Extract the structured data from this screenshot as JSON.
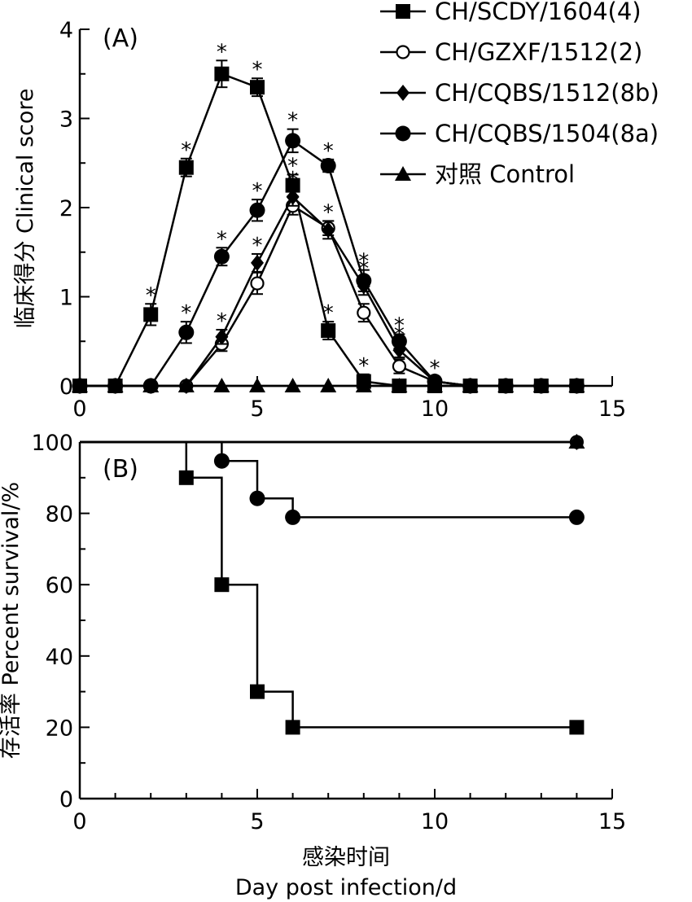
{
  "chart_data": [
    {
      "type": "line",
      "panel_label": "(A)",
      "ylabel": "临床得分 Clinical score",
      "xlim": [
        0,
        15
      ],
      "ylim": [
        0,
        4
      ],
      "x_ticks": [
        "0",
        "5",
        "10",
        "15"
      ],
      "y_ticks": [
        "0",
        "1",
        "2",
        "3",
        "4"
      ],
      "grid": false,
      "legend_position": "top-right",
      "significance_marker": "*",
      "series": [
        {
          "name": "CH/SCDY/1604(4)",
          "marker": "square-filled",
          "x": [
            0,
            1,
            2,
            3,
            4,
            5,
            6,
            7,
            8,
            9,
            10,
            11,
            12,
            13,
            14
          ],
          "y": [
            0,
            0,
            0.8,
            2.45,
            3.5,
            3.35,
            2.25,
            0.62,
            0.05,
            0,
            0,
            0,
            0,
            0,
            0
          ],
          "err": [
            0,
            0,
            0.12,
            0.1,
            0.15,
            0.1,
            0.12,
            0.1,
            0.08,
            0,
            0,
            0,
            0,
            0,
            0
          ],
          "sig": [
            false,
            false,
            true,
            true,
            true,
            true,
            true,
            true,
            true,
            false,
            false,
            false,
            false,
            false,
            false
          ]
        },
        {
          "name": "CH/GZXF/1512(2)",
          "marker": "circle-open",
          "x": [
            0,
            1,
            2,
            3,
            4,
            5,
            6,
            7,
            8,
            9,
            10,
            11,
            12,
            13,
            14
          ],
          "y": [
            0,
            0,
            0,
            0,
            0.47,
            1.15,
            2.02,
            1.77,
            0.82,
            0.22,
            0.05,
            0,
            0,
            0,
            0
          ],
          "err": [
            0,
            0,
            0,
            0,
            0.08,
            0.12,
            0.1,
            0.08,
            0.1,
            0.08,
            0.05,
            0,
            0,
            0,
            0
          ],
          "sig": [
            false,
            false,
            false,
            false,
            false,
            false,
            false,
            false,
            false,
            false,
            false,
            false,
            false,
            false,
            false
          ]
        },
        {
          "name": "CH/CQBS/1512(8b)",
          "marker": "diamond-filled",
          "x": [
            0,
            1,
            2,
            3,
            4,
            5,
            6,
            7,
            8,
            9,
            10,
            11,
            12,
            13,
            14
          ],
          "y": [
            0,
            0,
            0,
            0,
            0.55,
            1.38,
            2.12,
            1.75,
            1.12,
            0.4,
            0.05,
            0,
            0,
            0,
            0
          ],
          "err": [
            0,
            0,
            0,
            0,
            0.08,
            0.1,
            0.1,
            0.1,
            0.1,
            0.08,
            0.05,
            0,
            0,
            0,
            0
          ],
          "sig": [
            false,
            false,
            false,
            false,
            true,
            true,
            true,
            true,
            true,
            true,
            true,
            false,
            false,
            false,
            false
          ]
        },
        {
          "name": "CH/CQBS/1504(8a)",
          "marker": "circle-filled",
          "x": [
            0,
            1,
            2,
            3,
            4,
            5,
            6,
            7,
            8,
            9,
            10,
            11,
            12,
            13,
            14
          ],
          "y": [
            0,
            0,
            0,
            0.6,
            1.45,
            1.97,
            2.75,
            2.47,
            1.18,
            0.5,
            0.05,
            0,
            0,
            0,
            0
          ],
          "err": [
            0,
            0,
            0,
            0.12,
            0.1,
            0.12,
            0.13,
            0.07,
            0.12,
            0.08,
            0.05,
            0,
            0,
            0,
            0
          ],
          "sig": [
            false,
            false,
            false,
            true,
            true,
            true,
            true,
            true,
            true,
            true,
            false,
            false,
            false,
            false,
            false
          ]
        },
        {
          "name": "对照 Control",
          "marker": "triangle-filled",
          "x": [
            0,
            1,
            2,
            3,
            4,
            5,
            6,
            7,
            8,
            9,
            10,
            11,
            12,
            13,
            14
          ],
          "y": [
            0,
            0,
            0,
            0,
            0,
            0,
            0,
            0,
            0,
            0,
            0,
            0,
            0,
            0,
            0
          ],
          "err": [
            0,
            0,
            0,
            0,
            0,
            0,
            0,
            0,
            0,
            0,
            0,
            0,
            0,
            0,
            0
          ],
          "sig": [
            false,
            false,
            false,
            false,
            false,
            false,
            false,
            false,
            false,
            false,
            false,
            false,
            false,
            false,
            false
          ]
        }
      ]
    },
    {
      "type": "line",
      "step": true,
      "panel_label": "(B)",
      "ylabel": "存活率 Percent survival/%",
      "xlabel": "感染时间",
      "xlabel_en": "Day post infection/d",
      "xlim": [
        0,
        15
      ],
      "ylim": [
        0,
        100
      ],
      "x_ticks": [
        "0",
        "5",
        "10",
        "15"
      ],
      "y_ticks": [
        "0",
        "20",
        "40",
        "60",
        "80",
        "100"
      ],
      "grid": false,
      "series": [
        {
          "name": "CH/SCDY/1604(4)",
          "marker": "square-filled",
          "steps_x": [
            0,
            3,
            4,
            5,
            6,
            14
          ],
          "steps_y": [
            100,
            90,
            60,
            30,
            20,
            20
          ],
          "marker_x": [
            3,
            4,
            5,
            6,
            14
          ],
          "marker_y": [
            90,
            60,
            30,
            20,
            20
          ]
        },
        {
          "name": "CH/CQBS/1504(8a)",
          "marker": "circle-filled",
          "steps_x": [
            0,
            4,
            5,
            6,
            14
          ],
          "steps_y": [
            100,
            94.7,
            84.2,
            78.9,
            78.9
          ],
          "marker_x": [
            4,
            5,
            6,
            14
          ],
          "marker_y": [
            94.7,
            84.2,
            78.9,
            78.9
          ]
        },
        {
          "name": "CH/GZXF/1512(2)",
          "marker": "circle-open",
          "steps_x": [
            0,
            14
          ],
          "steps_y": [
            100,
            100
          ],
          "marker_x": [
            14
          ],
          "marker_y": [
            100
          ]
        },
        {
          "name": "CH/CQBS/1512(8b)",
          "marker": "diamond-filled",
          "steps_x": [
            0,
            14
          ],
          "steps_y": [
            100,
            100
          ],
          "marker_x": [
            14
          ],
          "marker_y": [
            100
          ]
        },
        {
          "name": "对照 Control",
          "marker": "triangle-filled",
          "steps_x": [
            0,
            14
          ],
          "steps_y": [
            100,
            100
          ],
          "marker_x": [
            14
          ],
          "marker_y": [
            100
          ]
        }
      ]
    }
  ]
}
